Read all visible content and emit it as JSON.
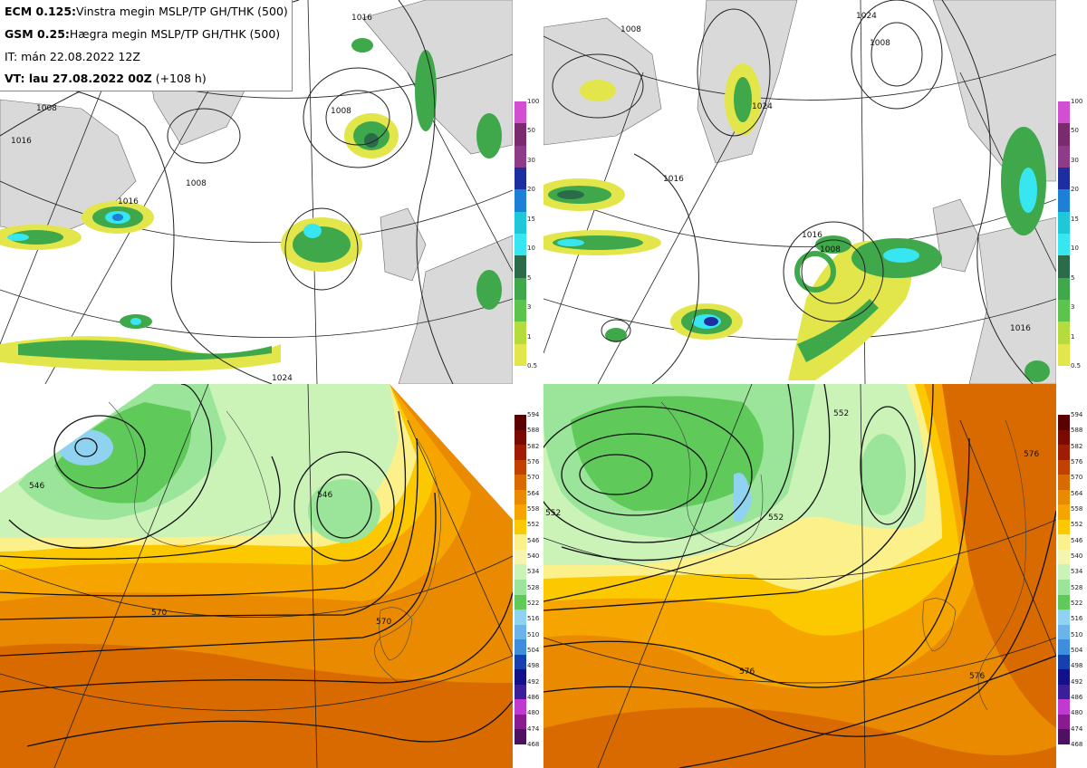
{
  "header": {
    "line1_bold": "ECM 0.125:",
    "line1_rest": "Vinstra megin MSLP/TP GH/THK (500)",
    "line2_bold": "GSM 0.25:",
    "line2_rest": "Hægra megin MSLP/TP GH/THK (500)",
    "line3": "IT: mán 22.08.2022 12Z",
    "line4_bold": "VT: lau 27.08.2022 00Z",
    "line4_rest": " (+108 h)"
  },
  "colorbar_precip": {
    "labels": [
      "100",
      "50",
      "30",
      "20",
      "15",
      "10",
      "5",
      "3",
      "1",
      "0.5"
    ],
    "colors": [
      "#d24fd2",
      "#7a2b6f",
      "#8e3c8a",
      "#1c2ea0",
      "#1d7fd6",
      "#1ec8d8",
      "#38e6f2",
      "#2a6b4a",
      "#3fa84a",
      "#5cc34c",
      "#b6db3c",
      "#e3e64a"
    ]
  },
  "colorbar_gh": {
    "labels": [
      "594",
      "588",
      "582",
      "576",
      "570",
      "564",
      "558",
      "552",
      "546",
      "540",
      "534",
      "528",
      "522",
      "516",
      "510",
      "504",
      "498",
      "492",
      "486",
      "480",
      "474",
      "468"
    ],
    "colors": [
      "#5a0000",
      "#7a0a00",
      "#a01c00",
      "#c24000",
      "#d86a00",
      "#ea8a00",
      "#f6a400",
      "#fcc800",
      "#fbf08a",
      "#f4f6b0",
      "#cbf3b8",
      "#9be59a",
      "#5fc95a",
      "#8fd3f0",
      "#6ab4ea",
      "#3f8ede",
      "#1640b0",
      "#12108a",
      "#3a1e9a",
      "#c03ad0",
      "#8a1a90",
      "#4e1060"
    ]
  },
  "panels": {
    "ecm_mslp": {
      "isobar_labels": [
        "1016",
        "1008",
        "1008",
        "1016",
        "1016",
        "1008",
        "1024"
      ]
    },
    "gsm_mslp": {
      "isobar_labels": [
        "1008",
        "1016",
        "1024",
        "1008",
        "1016",
        "1008",
        "1016",
        "1024"
      ]
    },
    "ecm_gh": {
      "contour_labels": [
        "546",
        "546",
        "570",
        "570"
      ]
    },
    "gsm_gh": {
      "contour_labels": [
        "552",
        "552",
        "552",
        "576",
        "576",
        "576"
      ]
    }
  }
}
